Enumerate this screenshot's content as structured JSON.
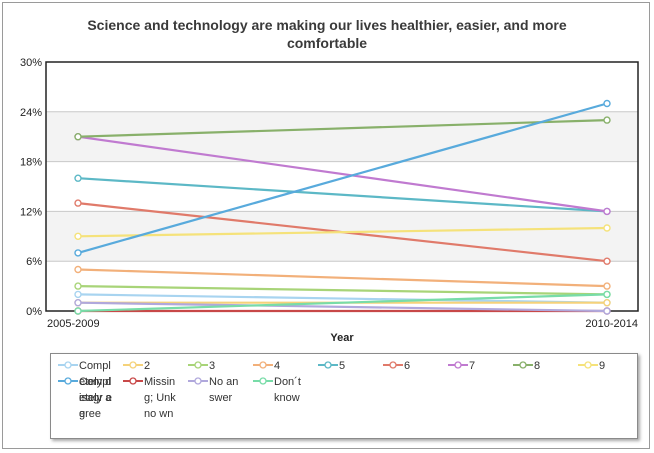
{
  "chart_data": {
    "type": "line",
    "title": "Science and technology are making our lives healthier, easier, and more comfortable",
    "title_lines": [
      "Science and technology are making our lives healthier, easier, and more",
      "comfortable"
    ],
    "xlabel": "Year",
    "ylabel": "",
    "categories": [
      "2005-2009",
      "2010-2014"
    ],
    "yticks": [
      "0%",
      "6%",
      "12%",
      "18%",
      "24%",
      "30%"
    ],
    "ylim": [
      0,
      30
    ],
    "series": [
      {
        "name": "Completely disagree",
        "color": "#a8d4f0",
        "values": [
          2,
          1
        ]
      },
      {
        "name": "2",
        "color": "#f5d27a",
        "values": [
          1,
          1
        ]
      },
      {
        "name": "3",
        "color": "#a8d478",
        "values": [
          3,
          2
        ]
      },
      {
        "name": "4",
        "color": "#f2b07a",
        "values": [
          5,
          3
        ]
      },
      {
        "name": "5",
        "color": "#5cb8c6",
        "values": [
          16,
          12
        ]
      },
      {
        "name": "6",
        "color": "#e07a6a",
        "values": [
          13,
          6
        ]
      },
      {
        "name": "7",
        "color": "#c07ad0",
        "values": [
          21,
          12
        ]
      },
      {
        "name": "8",
        "color": "#88b06a",
        "values": [
          21,
          23
        ]
      },
      {
        "name": "9",
        "color": "#f5e27a",
        "values": [
          9,
          10
        ]
      },
      {
        "name": "Completely agree",
        "color": "#58aadc",
        "values": [
          7,
          25
        ]
      },
      {
        "name": "Missing; Unknown",
        "color": "#c84848",
        "values": [
          0,
          0
        ]
      },
      {
        "name": "No answer",
        "color": "#b0a8dc",
        "values": [
          1,
          0
        ]
      },
      {
        "name": "Don´t know",
        "color": "#78dca8",
        "values": [
          0,
          2
        ]
      }
    ],
    "legend_labels": [
      "Compl etely disagr ee",
      "2",
      "3",
      "4",
      "5",
      "6",
      "7",
      "8",
      "9",
      "Compl etely agree",
      "Missin g; Unkno wn",
      "No answer",
      "Don´t know"
    ]
  }
}
